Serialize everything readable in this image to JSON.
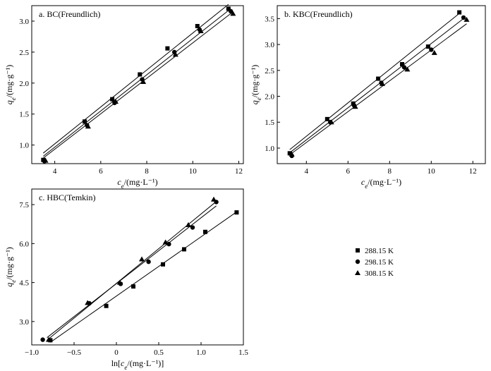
{
  "chart_data": [
    {
      "type": "scatter",
      "title": "a. BC(Freundlich)",
      "xlabel": "c_e/(mg·L⁻¹)",
      "ylabel": "q_e/(mg·g⁻¹)",
      "xlim": [
        3,
        12.2
      ],
      "ylim": [
        0.7,
        3.25
      ],
      "xticks": [
        4,
        6,
        8,
        10,
        12
      ],
      "yticks": [
        1.0,
        1.5,
        2.0,
        2.5,
        3.0
      ],
      "xtick_labels": [
        "4",
        "6",
        "8",
        "10",
        "12"
      ],
      "ytick_labels": [
        "1.0",
        "1.5",
        "2.0",
        "2.5",
        "3.0"
      ],
      "series": [
        {
          "name": "288.15 K",
          "marker": "square",
          "x": [
            3.5,
            5.3,
            6.5,
            7.7,
            8.9,
            10.2,
            11.55
          ],
          "y": [
            0.76,
            1.38,
            1.74,
            2.14,
            2.56,
            2.92,
            3.2
          ],
          "fit": [
            [
              3.5,
              0.87
            ],
            [
              11.55,
              3.27
            ]
          ]
        },
        {
          "name": "298.15 K",
          "marker": "circle",
          "x": [
            3.55,
            5.4,
            6.6,
            7.8,
            9.2,
            10.3,
            11.65
          ],
          "y": [
            0.74,
            1.32,
            1.68,
            2.06,
            2.5,
            2.86,
            3.16
          ],
          "fit": [
            [
              3.5,
              0.82
            ],
            [
              11.65,
              3.2
            ]
          ]
        },
        {
          "name": "308.15 K",
          "marker": "triangle",
          "x": [
            3.6,
            5.45,
            6.65,
            7.85,
            9.25,
            10.35,
            11.75
          ],
          "y": [
            0.75,
            1.3,
            1.7,
            2.02,
            2.46,
            2.84,
            3.12
          ],
          "fit": [
            [
              3.5,
              0.79
            ],
            [
              11.75,
              3.15
            ]
          ]
        }
      ]
    },
    {
      "type": "scatter",
      "title": "b. KBC(Freundlich)",
      "xlabel": "c_e/(mg·L⁻¹)",
      "ylabel": "q_e/(mg·g⁻¹)",
      "xlim": [
        2.6,
        12.6
      ],
      "ylim": [
        0.7,
        3.75
      ],
      "xticks": [
        4,
        6,
        8,
        10,
        12
      ],
      "yticks": [
        1.0,
        1.5,
        2.0,
        2.5,
        3.0,
        3.5
      ],
      "xtick_labels": [
        "4",
        "6",
        "8",
        "10",
        "12"
      ],
      "ytick_labels": [
        "1.0",
        "1.5",
        "2.0",
        "2.5",
        "3.0",
        "3.5"
      ],
      "series": [
        {
          "name": "288.15 K",
          "marker": "square",
          "x": [
            3.2,
            5.0,
            6.25,
            7.45,
            8.6,
            9.85,
            11.35
          ],
          "y": [
            0.9,
            1.56,
            1.86,
            2.34,
            2.62,
            2.96,
            3.62
          ],
          "fit": [
            [
              3.2,
              0.97
            ],
            [
              11.35,
              3.6
            ]
          ]
        },
        {
          "name": "298.15 K",
          "marker": "circle",
          "x": [
            3.3,
            5.15,
            6.3,
            7.6,
            8.7,
            10.0,
            11.55
          ],
          "y": [
            0.85,
            1.5,
            1.82,
            2.26,
            2.56,
            2.9,
            3.52
          ],
          "fit": [
            [
              3.2,
              0.91
            ],
            [
              11.55,
              3.5
            ]
          ]
        },
        {
          "name": "308.15 K",
          "marker": "triangle",
          "x": [
            3.3,
            5.2,
            6.35,
            7.65,
            8.85,
            10.15,
            11.7
          ],
          "y": [
            0.88,
            1.5,
            1.8,
            2.24,
            2.52,
            2.84,
            3.48
          ],
          "fit": [
            [
              3.2,
              0.87
            ],
            [
              11.7,
              3.4
            ]
          ]
        }
      ]
    },
    {
      "type": "scatter",
      "title": "c. HBC(Temkin)",
      "xlabel": "ln[c_e/(mg·L⁻¹)]",
      "ylabel": "q_e/(mg·g⁻¹)",
      "xlim": [
        -1.0,
        1.5
      ],
      "ylim": [
        2.1,
        8.1
      ],
      "xticks": [
        -1.0,
        -0.5,
        0.0,
        0.5,
        1.0,
        1.5
      ],
      "yticks": [
        3.0,
        4.5,
        6.0,
        7.5
      ],
      "xtick_labels": [
        "−1.0",
        "−0.5",
        "0",
        "0.5",
        "1.0",
        "1.5"
      ],
      "ytick_labels": [
        "3.0",
        "4.5",
        "6.0",
        "7.5"
      ],
      "series": [
        {
          "name": "288.15 K",
          "marker": "square",
          "x": [
            -0.78,
            -0.12,
            0.2,
            0.55,
            0.8,
            1.05,
            1.42
          ],
          "y": [
            2.28,
            3.6,
            4.35,
            5.2,
            5.78,
            6.45,
            7.2
          ],
          "fit": [
            [
              -0.78,
              2.2
            ],
            [
              1.42,
              7.22
            ]
          ]
        },
        {
          "name": "298.15 K",
          "marker": "circle",
          "x": [
            -0.87,
            -0.32,
            0.05,
            0.38,
            0.62,
            0.9,
            1.18
          ],
          "y": [
            2.3,
            3.7,
            4.45,
            5.3,
            5.98,
            6.62,
            7.6
          ],
          "fit": [
            [
              -0.82,
              2.38
            ],
            [
              1.18,
              7.45
            ]
          ]
        },
        {
          "name": "308.15 K",
          "marker": "triangle",
          "x": [
            -0.8,
            -0.34,
            0.04,
            0.3,
            0.58,
            0.85,
            1.15
          ],
          "y": [
            2.3,
            3.72,
            4.5,
            5.4,
            6.05,
            6.72,
            7.7
          ],
          "fit": [
            [
              -0.82,
              2.28
            ],
            [
              1.18,
              7.62
            ]
          ]
        }
      ]
    }
  ],
  "legend": {
    "items": [
      {
        "label": "288.15 K",
        "marker": "square"
      },
      {
        "label": "298.15 K",
        "marker": "circle"
      },
      {
        "label": "308.15 K",
        "marker": "triangle"
      }
    ]
  }
}
